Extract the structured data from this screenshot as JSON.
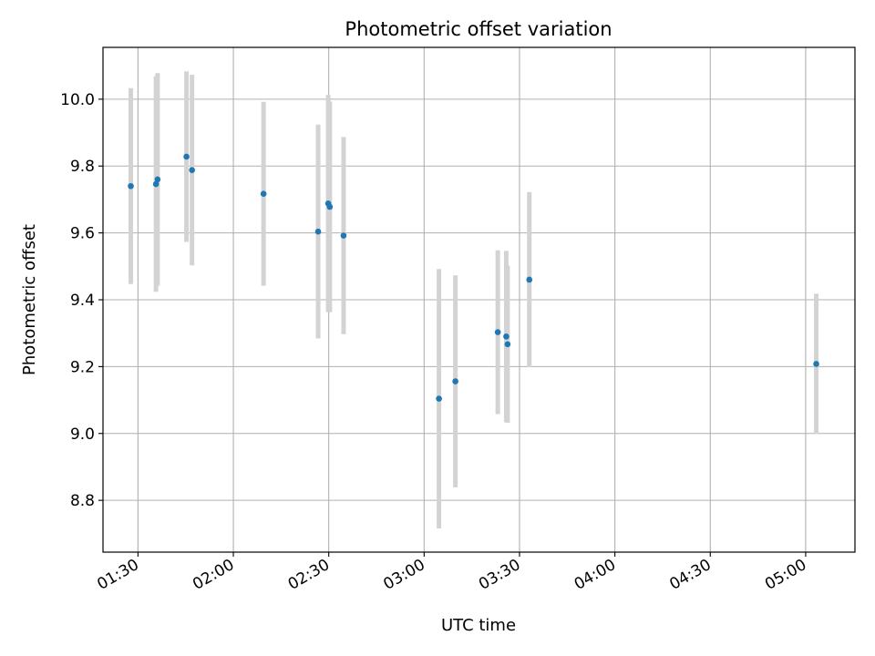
{
  "chart_data": {
    "type": "scatter",
    "title": "Photometric offset variation",
    "xlabel": "UTC time",
    "ylabel": "Photometric offset",
    "x_ticks": [
      "01:30",
      "02:00",
      "02:30",
      "03:00",
      "03:30",
      "04:00",
      "04:30",
      "05:00"
    ],
    "y_ticks": [
      "8.8",
      "9.0",
      "9.2",
      "9.4",
      "9.6",
      "9.8",
      "10.0"
    ],
    "xlim": [
      "01:19:00",
      "05:15:30"
    ],
    "ylim": [
      8.645,
      10.155
    ],
    "grid": true,
    "marker_color": "#1f77b4",
    "errorbar_color": "#d3d3d3",
    "points": [
      {
        "time": "01:27:45",
        "y": 9.74,
        "err": 0.293
      },
      {
        "time": "01:35:40",
        "y": 9.746,
        "err": 0.322
      },
      {
        "time": "01:36:10",
        "y": 9.76,
        "err": 0.318
      },
      {
        "time": "01:45:15",
        "y": 9.828,
        "err": 0.255
      },
      {
        "time": "01:47:00",
        "y": 9.788,
        "err": 0.285
      },
      {
        "time": "02:09:30",
        "y": 9.717,
        "err": 0.275
      },
      {
        "time": "02:26:40",
        "y": 9.604,
        "err": 0.32
      },
      {
        "time": "02:29:50",
        "y": 9.688,
        "err": 0.325
      },
      {
        "time": "02:30:20",
        "y": 9.678,
        "err": 0.315
      },
      {
        "time": "02:34:40",
        "y": 9.592,
        "err": 0.295
      },
      {
        "time": "03:04:40",
        "y": 9.104,
        "err": 0.388
      },
      {
        "time": "03:09:50",
        "y": 9.156,
        "err": 0.317
      },
      {
        "time": "03:23:10",
        "y": 9.303,
        "err": 0.245
      },
      {
        "time": "03:25:50",
        "y": 9.29,
        "err": 0.256
      },
      {
        "time": "03:26:15",
        "y": 9.267,
        "err": 0.235
      },
      {
        "time": "03:33:05",
        "y": 9.46,
        "err": 0.262
      },
      {
        "time": "05:03:20",
        "y": 9.208,
        "err": 0.21
      }
    ]
  }
}
